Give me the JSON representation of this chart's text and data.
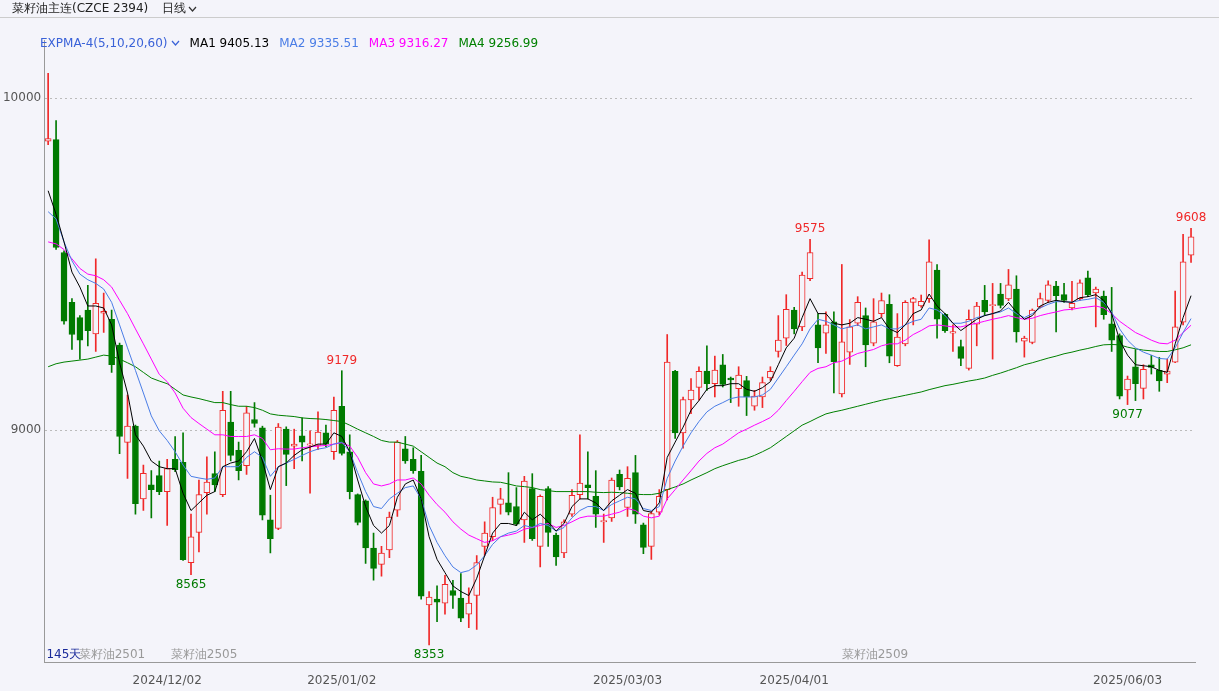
{
  "chart_data": {
    "type": "candlestick",
    "title": "菜籽油主连(CZCE 2394)",
    "subtitle": "日线",
    "legend_title": "EXPMA-4(5,10,20,60)",
    "legend": "top left",
    "grid": "y",
    "ylim": [
      8300,
      10175
    ],
    "yticks": [
      10000,
      9000
    ],
    "categories": [
      null,
      null,
      null,
      null,
      null,
      null,
      null,
      null,
      null,
      null,
      null,
      null,
      null,
      null,
      null,
      "2024/12/02",
      null,
      null,
      null,
      null,
      null,
      null,
      null,
      null,
      null,
      null,
      null,
      null,
      null,
      null,
      null,
      null,
      null,
      null,
      null,
      null,
      null,
      "2025/01/02",
      null,
      null,
      null,
      null,
      null,
      null,
      null,
      null,
      null,
      null,
      null,
      null,
      null,
      null,
      null,
      null,
      null,
      null,
      null,
      null,
      null,
      null,
      null,
      null,
      null,
      null,
      null,
      null,
      null,
      null,
      null,
      null,
      null,
      null,
      null,
      "2025/03/03",
      null,
      null,
      null,
      null,
      null,
      null,
      null,
      null,
      null,
      null,
      null,
      null,
      null,
      null,
      null,
      null,
      null,
      null,
      null,
      null,
      "2025/04/01",
      null,
      null,
      null,
      null,
      null,
      null,
      null,
      null,
      null,
      null,
      null,
      null,
      null,
      null,
      null,
      null,
      null,
      null,
      null,
      null,
      null,
      null,
      null,
      null,
      null,
      null,
      null,
      null,
      null,
      null,
      null,
      null,
      null,
      null,
      null,
      null,
      null,
      null,
      null,
      null,
      null,
      "2025/06/03",
      null,
      null,
      null,
      null,
      null,
      null,
      null,
      null
    ],
    "ohlc": [
      [
        9870,
        10075,
        9860,
        9878
      ],
      [
        9875,
        9932,
        9544,
        9550
      ],
      [
        9535,
        9540,
        9319,
        9328
      ],
      [
        9385,
        9396,
        9243,
        9288
      ],
      [
        9339,
        9345,
        9214,
        9271
      ],
      [
        9362,
        9436,
        9254,
        9300
      ],
      [
        9290,
        9516,
        9237,
        9382
      ],
      [
        9352,
        9413,
        9294,
        9358
      ],
      [
        9334,
        9362,
        9174,
        9197
      ],
      [
        9256,
        9262,
        8929,
        8981
      ],
      [
        8963,
        9106,
        8855,
        9012
      ],
      [
        9012,
        9015,
        8747,
        8779
      ],
      [
        8793,
        8895,
        8758,
        8870
      ],
      [
        8835,
        8878,
        8736,
        8821
      ],
      [
        8863,
        8907,
        8806,
        8815
      ],
      [
        8815,
        8912,
        8713,
        8884
      ],
      [
        8912,
        8981,
        8875,
        8881
      ],
      [
        8903,
        8992,
        8608,
        8610
      ],
      [
        8601,
        8747,
        8565,
        8679
      ],
      [
        8692,
        8850,
        8633,
        8806
      ],
      [
        8812,
        8920,
        8747,
        8844
      ],
      [
        8869,
        8935,
        8815,
        8835
      ],
      [
        8806,
        9117,
        8800,
        9060
      ],
      [
        9024,
        9117,
        8907,
        8924
      ],
      [
        8939,
        8964,
        8850,
        8878
      ],
      [
        8893,
        9072,
        8867,
        9052
      ],
      [
        9032,
        9083,
        9009,
        9020
      ],
      [
        9007,
        9012,
        8730,
        8744
      ],
      [
        8730,
        8804,
        8630,
        8673
      ],
      [
        8704,
        9020,
        8700,
        9009
      ],
      [
        9003,
        9010,
        8833,
        8927
      ],
      [
        8952,
        9003,
        8884,
        8958
      ],
      [
        8983,
        9037,
        8907,
        8964
      ],
      [
        8955,
        8998,
        8810,
        8959
      ],
      [
        8954,
        9055,
        8941,
        8994
      ],
      [
        8992,
        9015,
        8950,
        8958
      ],
      [
        8935,
        9100,
        8912,
        9060
      ],
      [
        9072,
        9179,
        8925,
        8930
      ],
      [
        8935,
        8986,
        8793,
        8815
      ],
      [
        8806,
        8808,
        8715,
        8722
      ],
      [
        8787,
        8790,
        8599,
        8645
      ],
      [
        8645,
        8690,
        8548,
        8584
      ],
      [
        8596,
        8650,
        8560,
        8630
      ],
      [
        8639,
        8753,
        8616,
        8738
      ],
      [
        8759,
        8969,
        8740,
        8964
      ],
      [
        8944,
        8981,
        8900,
        8907
      ],
      [
        8912,
        8947,
        8870,
        8878
      ],
      [
        8876,
        8924,
        8491,
        8500
      ],
      [
        8474,
        8514,
        8353,
        8497
      ],
      [
        8491,
        8531,
        8423,
        8482
      ],
      [
        8479,
        8563,
        8446,
        8536
      ],
      [
        8517,
        8548,
        8463,
        8502
      ],
      [
        8494,
        8568,
        8423,
        8434
      ],
      [
        8446,
        8525,
        8405,
        8479
      ],
      [
        8502,
        8622,
        8400,
        8601
      ],
      [
        8650,
        8724,
        8622,
        8690
      ],
      [
        8679,
        8798,
        8667,
        8767
      ],
      [
        8776,
        8825,
        8747,
        8793
      ],
      [
        8781,
        8872,
        8745,
        8753
      ],
      [
        8770,
        8827,
        8712,
        8717
      ],
      [
        8730,
        8861,
        8662,
        8847
      ],
      [
        8824,
        8869,
        8668,
        8673
      ],
      [
        8650,
        8805,
        8588,
        8801
      ],
      [
        8824,
        8830,
        8650,
        8692
      ],
      [
        8684,
        8690,
        8593,
        8618
      ],
      [
        8630,
        8730,
        8616,
        8724
      ],
      [
        8747,
        8821,
        8740,
        8804
      ],
      [
        8806,
        8986,
        8793,
        8841
      ],
      [
        8835,
        8935,
        8793,
        8827
      ],
      [
        8801,
        8878,
        8707,
        8747
      ],
      [
        8724,
        8747,
        8662,
        8728
      ],
      [
        8736,
        8856,
        8725,
        8850
      ],
      [
        8867,
        8880,
        8820,
        8829
      ],
      [
        8767,
        8890,
        8740,
        8855
      ],
      [
        8872,
        8924,
        8719,
        8747
      ],
      [
        8715,
        8720,
        8628,
        8647
      ],
      [
        8650,
        8755,
        8611,
        8749
      ],
      [
        8753,
        8821,
        8745,
        8801
      ],
      [
        8821,
        9288,
        8790,
        9205
      ],
      [
        9177,
        9180,
        8975,
        8992
      ],
      [
        8992,
        9100,
        8946,
        9092
      ],
      [
        9091,
        9155,
        9050,
        9121
      ],
      [
        9129,
        9191,
        9090,
        9177
      ],
      [
        9178,
        9254,
        9120,
        9140
      ],
      [
        9140,
        9223,
        9100,
        9181
      ],
      [
        9197,
        9228,
        9130,
        9138
      ],
      [
        9157,
        9160,
        9083,
        9151
      ],
      [
        9125,
        9191,
        9072,
        9166
      ],
      [
        9149,
        9162,
        9044,
        9100
      ],
      [
        9072,
        9120,
        9060,
        9103
      ],
      [
        9100,
        9160,
        9068,
        9143
      ],
      [
        9157,
        9191,
        9150,
        9177
      ],
      [
        9237,
        9345,
        9220,
        9271
      ],
      [
        9277,
        9408,
        9255,
        9364
      ],
      [
        9362,
        9370,
        9290,
        9305
      ],
      [
        9311,
        9476,
        9300,
        9467
      ],
      [
        9456,
        9575,
        9450,
        9535
      ],
      [
        9317,
        9351,
        9203,
        9248
      ],
      [
        9292,
        9356,
        9231,
        9317
      ],
      [
        9326,
        9356,
        9112,
        9206
      ],
      [
        9109,
        9499,
        9100,
        9266
      ],
      [
        9235,
        9333,
        9198,
        9311
      ],
      [
        9322,
        9402,
        9315,
        9385
      ],
      [
        9345,
        9368,
        9191,
        9257
      ],
      [
        9262,
        9396,
        9254,
        9326
      ],
      [
        9351,
        9413,
        9340,
        9390
      ],
      [
        9379,
        9408,
        9203,
        9223
      ],
      [
        9194,
        9351,
        9192,
        9280
      ],
      [
        9260,
        9390,
        9254,
        9385
      ],
      [
        9385,
        9400,
        9317,
        9396
      ],
      [
        9374,
        9407,
        9370,
        9388
      ],
      [
        9396,
        9573,
        9385,
        9507
      ],
      [
        9482,
        9499,
        9277,
        9334
      ],
      [
        9349,
        9352,
        9294,
        9300
      ],
      [
        9292,
        9317,
        9237,
        9297
      ],
      [
        9252,
        9271,
        9194,
        9216
      ],
      [
        9186,
        9362,
        9181,
        9334
      ],
      [
        9319,
        9385,
        9254,
        9374
      ],
      [
        9391,
        9436,
        9345,
        9356
      ],
      [
        9375,
        9442,
        9214,
        9378
      ],
      [
        9410,
        9442,
        9368,
        9376
      ],
      [
        9395,
        9484,
        9390,
        9438
      ],
      [
        9425,
        9465,
        9265,
        9296
      ],
      [
        9268,
        9283,
        9220,
        9277
      ],
      [
        9264,
        9365,
        9260,
        9362
      ],
      [
        9371,
        9413,
        9368,
        9396
      ],
      [
        9391,
        9450,
        9385,
        9438
      ],
      [
        9434,
        9448,
        9296,
        9405
      ],
      [
        9408,
        9442,
        9385,
        9391
      ],
      [
        9368,
        9448,
        9362,
        9382
      ],
      [
        9396,
        9453,
        9391,
        9444
      ],
      [
        9459,
        9479,
        9402,
        9408
      ],
      [
        9413,
        9431,
        9311,
        9425
      ],
      [
        9404,
        9419,
        9334,
        9348
      ],
      [
        9320,
        9430,
        9237,
        9271
      ],
      [
        9285,
        9290,
        9094,
        9102
      ],
      [
        9121,
        9163,
        9077,
        9154
      ],
      [
        9191,
        9243,
        9089,
        9140
      ],
      [
        9126,
        9197,
        9094,
        9183
      ],
      [
        9197,
        9225,
        9169,
        9189
      ],
      [
        9180,
        9219,
        9117,
        9148
      ],
      [
        9169,
        9214,
        9143,
        9178
      ],
      [
        9205,
        9419,
        9203,
        9311
      ],
      [
        9325,
        9590,
        9317,
        9507
      ],
      [
        9527,
        9608,
        9505,
        9582
      ]
    ],
    "series": [
      {
        "type": "line",
        "name": "MA1 9405.13",
        "color": "#000000",
        "values": [
          9721,
          9650,
          9567,
          9476,
          9431,
          9374,
          9374,
          9368,
          9317,
          9203,
          9112,
          8986,
          8952,
          8907,
          8890,
          8884,
          8884,
          8810,
          8758,
          8781,
          8804,
          8815,
          8890,
          8901,
          8907,
          8935,
          8975,
          8907,
          8821,
          8890,
          8901,
          8924,
          8941,
          8949,
          8958,
          8958,
          8992,
          8981,
          8935,
          8850,
          8770,
          8713,
          8690,
          8713,
          8798,
          8838,
          8850,
          8793,
          8679,
          8611,
          8571,
          8531,
          8514,
          8502,
          8554,
          8622,
          8690,
          8719,
          8719,
          8713,
          8753,
          8730,
          8747,
          8724,
          8696,
          8719,
          8770,
          8793,
          8793,
          8781,
          8758,
          8787,
          8804,
          8821,
          8810,
          8758,
          8753,
          8781,
          8918,
          8964,
          9009,
          9060,
          9089,
          9123,
          9134,
          9134,
          9140,
          9140,
          9123,
          9117,
          9128,
          9146,
          9197,
          9248,
          9277,
          9339,
          9396,
          9351,
          9351,
          9322,
          9317,
          9322,
          9339,
          9334,
          9328,
          9339,
          9305,
          9294,
          9317,
          9351,
          9362,
          9410,
          9374,
          9351,
          9322,
          9300,
          9317,
          9334,
          9345,
          9351,
          9359,
          9385,
          9356,
          9334,
          9345,
          9374,
          9385,
          9391,
          9387,
          9385,
          9399,
          9402,
          9408,
          9391,
          9351,
          9271,
          9226,
          9197,
          9194,
          9191,
          9180,
          9174,
          9260,
          9339,
          9405
        ]
      },
      {
        "type": "line",
        "name": "MA2 9335.51",
        "color": "#4a7de6",
        "values": [
          9658,
          9636,
          9567,
          9510,
          9470,
          9453,
          9442,
          9425,
          9385,
          9317,
          9248,
          9180,
          9112,
          9043,
          8998,
          8969,
          8935,
          8895,
          8861,
          8856,
          8852,
          8856,
          8890,
          8890,
          8890,
          8918,
          8935,
          8918,
          8861,
          8890,
          8901,
          8912,
          8924,
          8935,
          8943,
          8947,
          8958,
          8964,
          8935,
          8872,
          8815,
          8770,
          8764,
          8793,
          8810,
          8827,
          8832,
          8793,
          8713,
          8662,
          8622,
          8588,
          8571,
          8577,
          8594,
          8622,
          8656,
          8679,
          8690,
          8696,
          8713,
          8707,
          8719,
          8713,
          8696,
          8707,
          8736,
          8758,
          8770,
          8770,
          8758,
          8776,
          8787,
          8798,
          8793,
          8764,
          8758,
          8770,
          8855,
          8907,
          8952,
          8992,
          9026,
          9055,
          9072,
          9083,
          9095,
          9100,
          9100,
          9100,
          9106,
          9123,
          9157,
          9191,
          9226,
          9260,
          9305,
          9334,
          9328,
          9317,
          9305,
          9311,
          9317,
          9305,
          9311,
          9317,
          9305,
          9305,
          9317,
          9328,
          9334,
          9368,
          9362,
          9345,
          9322,
          9322,
          9328,
          9339,
          9345,
          9351,
          9356,
          9368,
          9351,
          9339,
          9351,
          9368,
          9379,
          9387,
          9387,
          9385,
          9391,
          9394,
          9399,
          9385,
          9356,
          9305,
          9271,
          9248,
          9235,
          9226,
          9216,
          9214,
          9248,
          9294,
          9336
        ]
      },
      {
        "type": "line",
        "name": "MA3 9316.27",
        "color": "#ff00ff",
        "values": [
          9567,
          9561,
          9544,
          9516,
          9487,
          9470,
          9465,
          9453,
          9431,
          9391,
          9351,
          9305,
          9260,
          9214,
          9168,
          9146,
          9112,
          9066,
          9038,
          9020,
          9003,
          8986,
          8986,
          8981,
          8981,
          8981,
          8986,
          8975,
          8941,
          8944,
          8943,
          8943,
          8947,
          8950,
          8952,
          8954,
          8958,
          8962,
          8952,
          8918,
          8872,
          8838,
          8832,
          8838,
          8850,
          8850,
          8856,
          8838,
          8804,
          8776,
          8753,
          8724,
          8702,
          8684,
          8673,
          8662,
          8667,
          8679,
          8684,
          8690,
          8702,
          8707,
          8713,
          8719,
          8707,
          8713,
          8724,
          8736,
          8741,
          8741,
          8741,
          8747,
          8753,
          8764,
          8758,
          8741,
          8736,
          8741,
          8793,
          8821,
          8850,
          8878,
          8907,
          8930,
          8947,
          8958,
          8975,
          8992,
          9003,
          9015,
          9026,
          9038,
          9060,
          9089,
          9117,
          9146,
          9174,
          9186,
          9191,
          9203,
          9208,
          9220,
          9231,
          9237,
          9243,
          9254,
          9260,
          9260,
          9271,
          9288,
          9300,
          9314,
          9317,
          9314,
          9311,
          9311,
          9317,
          9322,
          9328,
          9334,
          9339,
          9345,
          9339,
          9334,
          9337,
          9345,
          9351,
          9356,
          9362,
          9364,
          9368,
          9371,
          9374,
          9368,
          9351,
          9328,
          9311,
          9294,
          9283,
          9271,
          9262,
          9260,
          9271,
          9294,
          9316
        ]
      },
      {
        "type": "line",
        "name": "MA4 9256.99",
        "color": "#008000",
        "values": [
          9191,
          9200,
          9205,
          9208,
          9211,
          9214,
          9220,
          9226,
          9223,
          9214,
          9203,
          9191,
          9174,
          9157,
          9148,
          9140,
          9123,
          9106,
          9100,
          9095,
          9089,
          9083,
          9083,
          9077,
          9072,
          9072,
          9068,
          9060,
          9049,
          9045,
          9043,
          9041,
          9037,
          9035,
          9034,
          9032,
          9029,
          9026,
          9015,
          9003,
          8992,
          8981,
          8969,
          8964,
          8964,
          8958,
          8952,
          8935,
          8918,
          8901,
          8890,
          8872,
          8861,
          8856,
          8850,
          8847,
          8844,
          8843,
          8838,
          8832,
          8830,
          8827,
          8821,
          8818,
          8815,
          8815,
          8815,
          8815,
          8815,
          8813,
          8812,
          8813,
          8812,
          8810,
          8807,
          8806,
          8806,
          8810,
          8821,
          8829,
          8838,
          8850,
          8861,
          8872,
          8884,
          8893,
          8901,
          8909,
          8915,
          8924,
          8935,
          8947,
          8964,
          8981,
          8998,
          9015,
          9026,
          9038,
          9049,
          9055,
          9060,
          9066,
          9072,
          9078,
          9084,
          9090,
          9095,
          9100,
          9105,
          9110,
          9115,
          9122,
          9128,
          9134,
          9138,
          9143,
          9148,
          9152,
          9157,
          9165,
          9172,
          9180,
          9188,
          9197,
          9203,
          9210,
          9217,
          9223,
          9230,
          9235,
          9241,
          9246,
          9252,
          9257,
          9258,
          9257,
          9250,
          9245,
          9241,
          9239,
          9237,
          9237,
          9242,
          9248,
          9257
        ]
      }
    ],
    "annotations": [
      "145天",
      "菜籽油2501",
      "菜籽油2505",
      "菜籽油2509",
      {
        "text": "9179",
        "y": 9179
      },
      {
        "text": "8565",
        "y": 8565
      },
      {
        "text": "8353",
        "y": 8353
      },
      {
        "text": "9575",
        "y": 9575
      },
      {
        "text": "9608",
        "y": 9608
      },
      {
        "text": "9077",
        "y": 9077
      }
    ]
  }
}
